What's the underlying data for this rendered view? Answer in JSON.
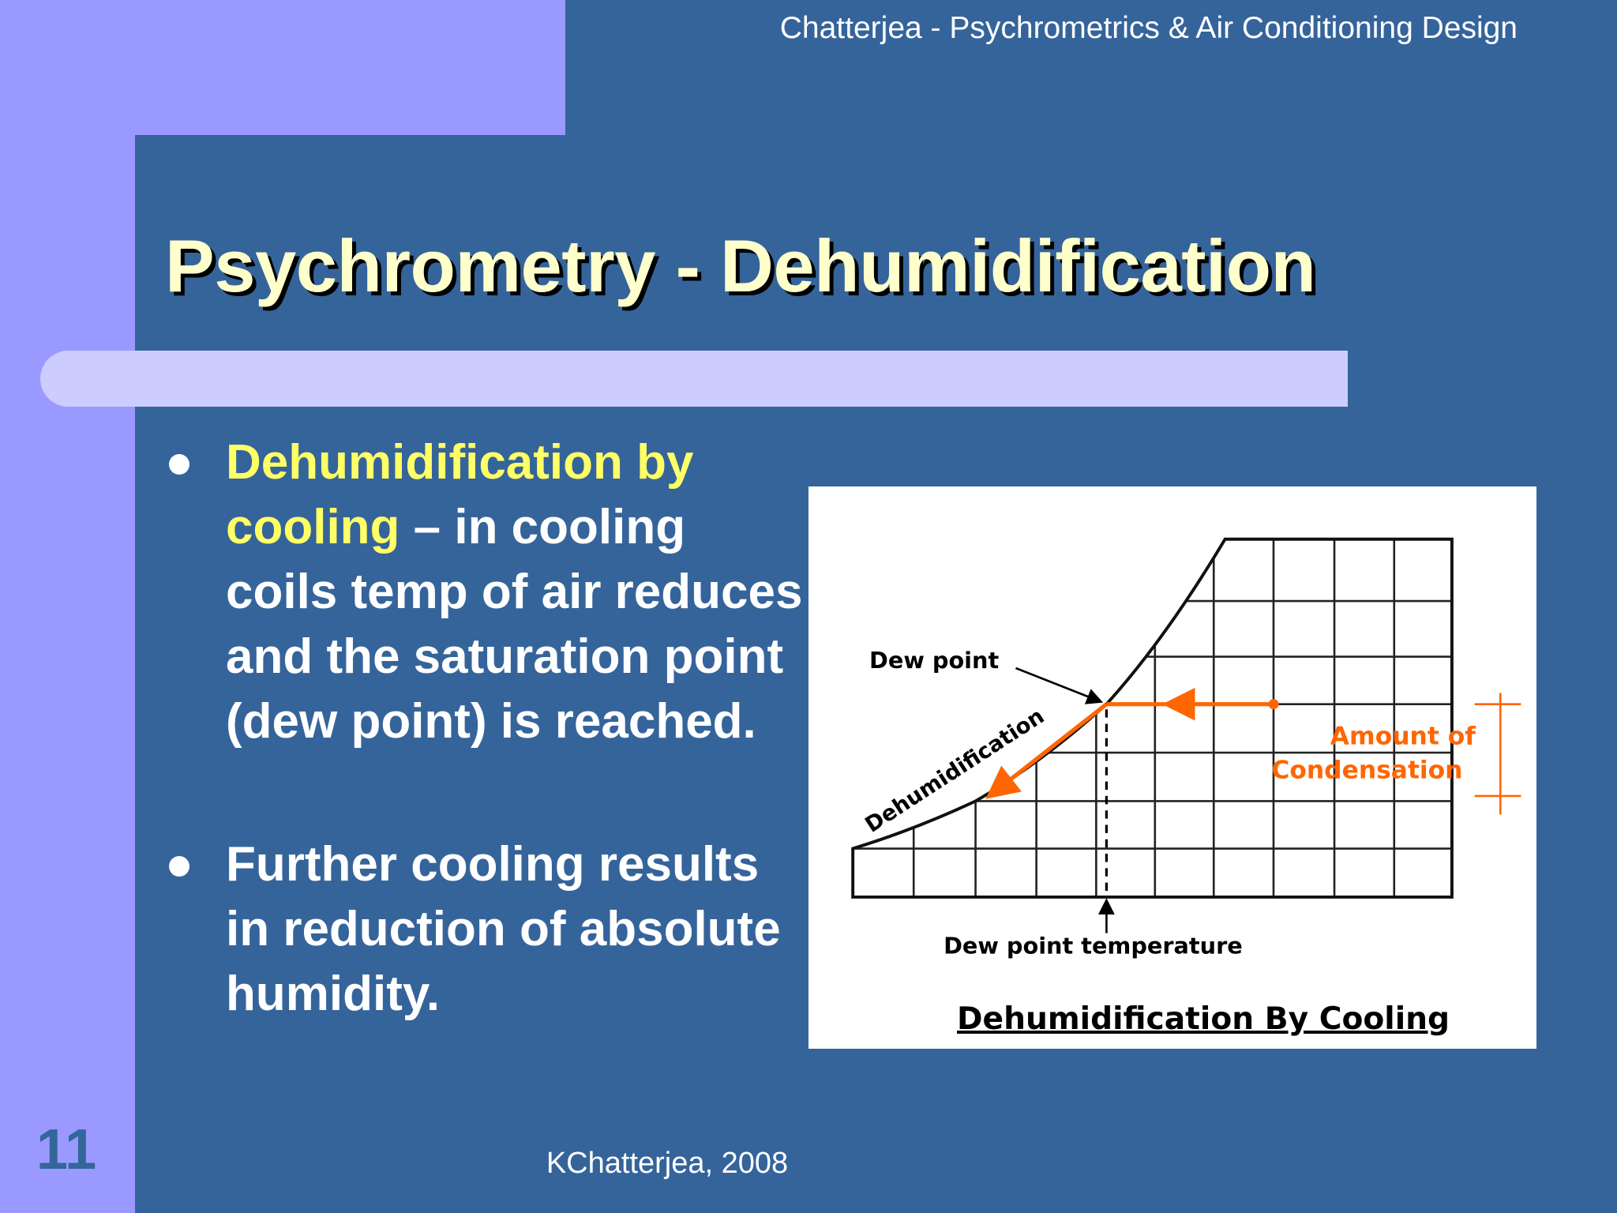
{
  "header": {
    "text": "Chatterjea - Psychrometrics & Air Conditioning Design"
  },
  "title": "Psychrometry - Dehumidification",
  "bullets": [
    {
      "highlight": "Dehumidification by cooling",
      "text": " – in cooling coils temp of air reduces and the saturation point (dew point) is reached."
    },
    {
      "text": "Further cooling results in reduction of absolute humidity."
    }
  ],
  "diagram": {
    "dew_point": "Dew point",
    "process": "Dehumidification",
    "condensation": [
      "Amount of",
      "Condensation"
    ],
    "dew_point_temperature": "Dew point temperature",
    "caption": "Dehumidification By Cooling"
  },
  "footer": {
    "text": "KChatterjea, 2008",
    "slide_number": "11"
  }
}
